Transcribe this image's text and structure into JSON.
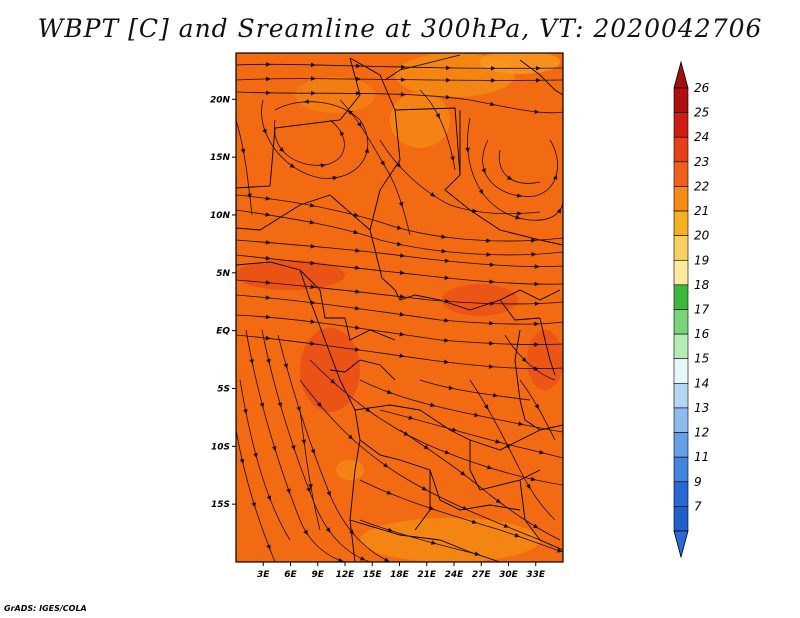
{
  "title": "WBPT [C] and Sreamline at 300hPa, VT: 2020042706",
  "credit": "GrADS: IGES/COLA",
  "map": {
    "lon_range": [
      0,
      36
    ],
    "lat_range": [
      -20,
      24
    ],
    "lat_ticks": [
      {
        "value": 20,
        "label": "20N"
      },
      {
        "value": 15,
        "label": "15N"
      },
      {
        "value": 10,
        "label": "10N"
      },
      {
        "value": 5,
        "label": "5N"
      },
      {
        "value": 0,
        "label": "EQ"
      },
      {
        "value": -5,
        "label": "5S"
      },
      {
        "value": -10,
        "label": "10S"
      },
      {
        "value": -15,
        "label": "15S"
      }
    ],
    "lon_ticks": [
      {
        "value": 3,
        "label": "3E"
      },
      {
        "value": 6,
        "label": "6E"
      },
      {
        "value": 9,
        "label": "9E"
      },
      {
        "value": 12,
        "label": "12E"
      },
      {
        "value": 15,
        "label": "15E"
      },
      {
        "value": 18,
        "label": "18E"
      },
      {
        "value": 21,
        "label": "21E"
      },
      {
        "value": 24,
        "label": "24E"
      },
      {
        "value": 27,
        "label": "27E"
      },
      {
        "value": 30,
        "label": "30E"
      },
      {
        "value": 33,
        "label": "33E"
      }
    ],
    "background_color": "#f26a12"
  },
  "colorbar": {
    "levels": [
      "26",
      "25",
      "24",
      "23",
      "22",
      "21",
      "20",
      "19",
      "18",
      "17",
      "16",
      "15",
      "14",
      "13",
      "12",
      "11",
      "9",
      "7"
    ],
    "colors": [
      "#b01010",
      "#cc1c14",
      "#e5401a",
      "#f0601a",
      "#f58a14",
      "#f7ae20",
      "#f7d060",
      "#fbeaa0",
      "#3cb83c",
      "#78d478",
      "#b4ecb4",
      "#e6f8fa",
      "#b4d8f4",
      "#8cbcee",
      "#64a0e6",
      "#4484dc",
      "#2868d2",
      "#2060cc"
    ],
    "top_arrow_color": "#a01010",
    "bottom_arrow_color": "#2a6ad4"
  }
}
